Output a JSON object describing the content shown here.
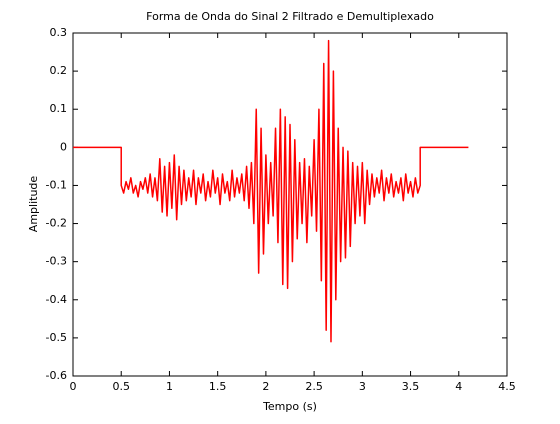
{
  "chart_data": {
    "type": "line",
    "title": "Forma de Onda do Sinal 2 Filtrado e Demultiplexado",
    "x_label": "Tempo (s)",
    "y_label": "Amplitude",
    "x": [
      0,
      0.5,
      0.5,
      0.525,
      0.55,
      0.575,
      0.6,
      0.625,
      0.65,
      0.675,
      0.7,
      0.725,
      0.75,
      0.775,
      0.8,
      0.825,
      0.85,
      0.875,
      0.9,
      0.925,
      0.95,
      0.975,
      1,
      1.025,
      1.05,
      1.075,
      1.1,
      1.125,
      1.15,
      1.175,
      1.2,
      1.225,
      1.25,
      1.275,
      1.3,
      1.325,
      1.35,
      1.375,
      1.4,
      1.425,
      1.45,
      1.475,
      1.5,
      1.525,
      1.55,
      1.575,
      1.6,
      1.625,
      1.65,
      1.675,
      1.7,
      1.725,
      1.75,
      1.775,
      1.8,
      1.825,
      1.85,
      1.875,
      1.9,
      1.925,
      1.95,
      1.975,
      2,
      2.025,
      2.05,
      2.075,
      2.1,
      2.125,
      2.15,
      2.175,
      2.2,
      2.225,
      2.25,
      2.275,
      2.3,
      2.325,
      2.35,
      2.375,
      2.4,
      2.425,
      2.45,
      2.475,
      2.5,
      2.525,
      2.55,
      2.575,
      2.6,
      2.625,
      2.65,
      2.675,
      2.7,
      2.725,
      2.75,
      2.775,
      2.8,
      2.825,
      2.85,
      2.875,
      2.9,
      2.925,
      2.95,
      2.975,
      3,
      3.025,
      3.05,
      3.075,
      3.1,
      3.125,
      3.15,
      3.175,
      3.2,
      3.225,
      3.25,
      3.275,
      3.3,
      3.325,
      3.35,
      3.375,
      3.4,
      3.425,
      3.45,
      3.475,
      3.5,
      3.525,
      3.55,
      3.575,
      3.6,
      3.6,
      4.1
    ],
    "values": [
      0,
      0,
      -0.1,
      -0.12,
      -0.09,
      -0.11,
      -0.08,
      -0.12,
      -0.1,
      -0.13,
      -0.09,
      -0.11,
      -0.08,
      -0.12,
      -0.07,
      -0.13,
      -0.08,
      -0.14,
      -0.03,
      -0.17,
      -0.05,
      -0.18,
      -0.04,
      -0.16,
      -0.02,
      -0.19,
      -0.05,
      -0.15,
      -0.06,
      -0.14,
      -0.08,
      -0.13,
      -0.06,
      -0.15,
      -0.08,
      -0.12,
      -0.07,
      -0.14,
      -0.09,
      -0.13,
      -0.06,
      -0.12,
      -0.08,
      -0.15,
      -0.07,
      -0.12,
      -0.09,
      -0.14,
      -0.06,
      -0.13,
      -0.08,
      -0.12,
      -0.07,
      -0.14,
      -0.05,
      -0.16,
      -0.04,
      -0.2,
      0.1,
      -0.33,
      0.05,
      -0.28,
      -0.02,
      -0.2,
      -0.04,
      -0.18,
      0.05,
      -0.25,
      0.1,
      -0.36,
      0.08,
      -0.37,
      0.06,
      -0.3,
      0.02,
      -0.24,
      -0.04,
      -0.2,
      -0.03,
      -0.25,
      -0.05,
      -0.18,
      0.02,
      -0.22,
      0.1,
      -0.35,
      0.22,
      -0.48,
      0.28,
      -0.51,
      0.2,
      -0.4,
      0.05,
      -0.3,
      0.0,
      -0.29,
      -0.01,
      -0.26,
      -0.04,
      -0.2,
      -0.05,
      -0.18,
      -0.04,
      -0.2,
      -0.06,
      -0.15,
      -0.07,
      -0.13,
      -0.08,
      -0.12,
      -0.06,
      -0.14,
      -0.08,
      -0.12,
      -0.07,
      -0.13,
      -0.09,
      -0.12,
      -0.08,
      -0.14,
      -0.07,
      -0.12,
      -0.09,
      -0.13,
      -0.08,
      -0.12,
      -0.1,
      0,
      0
    ],
    "color": "#ff0000",
    "xlim": [
      0,
      4.5
    ],
    "xticks": [
      0,
      0.5,
      1,
      1.5,
      2,
      2.5,
      3,
      3.5,
      4,
      4.5
    ],
    "ylim": [
      -0.6,
      0.3
    ],
    "yticks": [
      -0.6,
      -0.5,
      -0.4,
      -0.3,
      -0.2,
      -0.1,
      0,
      0.1,
      0.2,
      0.3
    ]
  }
}
